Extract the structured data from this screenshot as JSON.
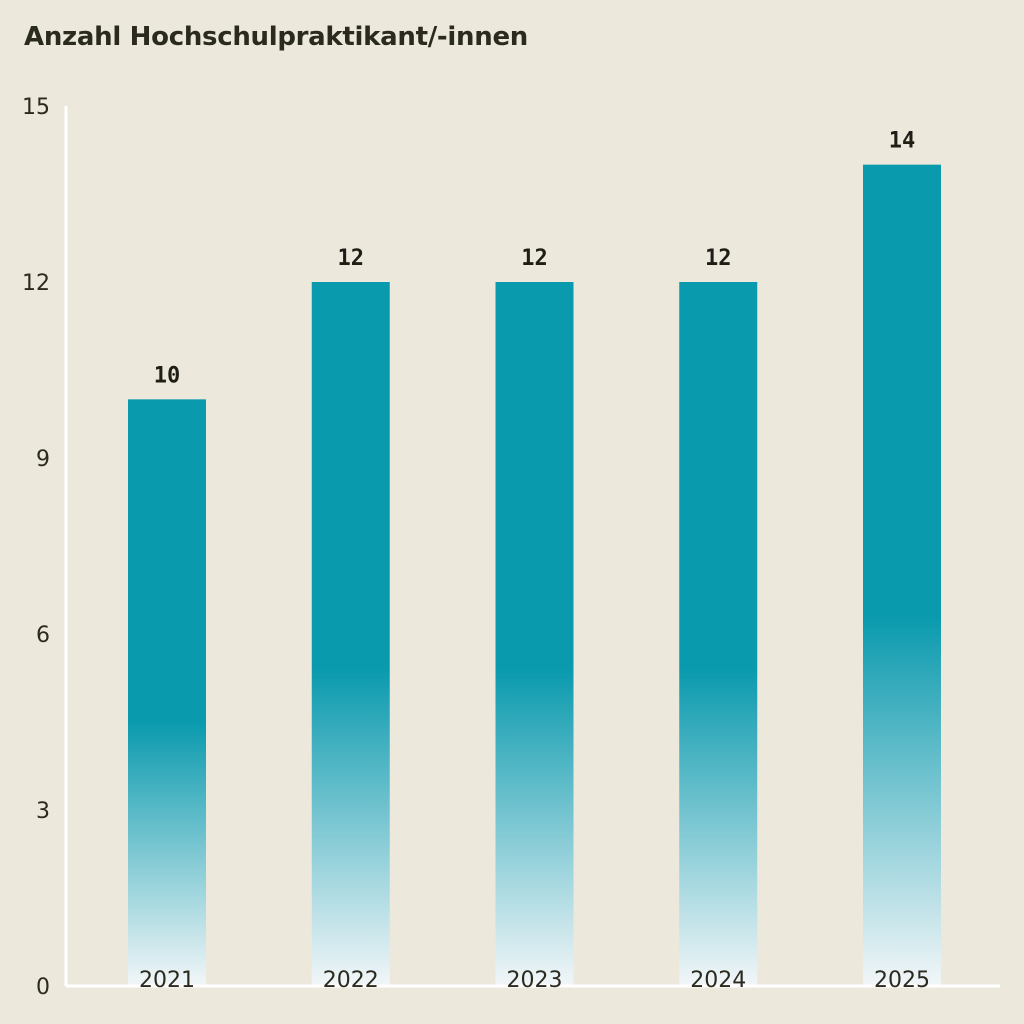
{
  "chart_data": {
    "type": "bar",
    "title": "Anzahl Hochschulpraktikant/-innen",
    "xlabel": "",
    "ylabel": "",
    "categories": [
      "2021",
      "2022",
      "2023",
      "2024",
      "2025"
    ],
    "values": [
      10,
      12,
      12,
      12,
      14
    ],
    "data_labels": [
      "10",
      "12",
      "12",
      "12",
      "14"
    ],
    "ylim": [
      0,
      15
    ],
    "yticks": [
      0,
      3,
      6,
      9,
      12,
      15
    ],
    "ytick_labels": [
      "0",
      "3",
      "6",
      "9",
      "12",
      "15"
    ],
    "grid": false,
    "legend": "none",
    "colors": {
      "background": "#ECE9DC",
      "bar": "#0A9AAE",
      "bar_fade": "#F2F6F8",
      "axis": "#FFFFFF",
      "text": "#2B2A1F"
    }
  }
}
